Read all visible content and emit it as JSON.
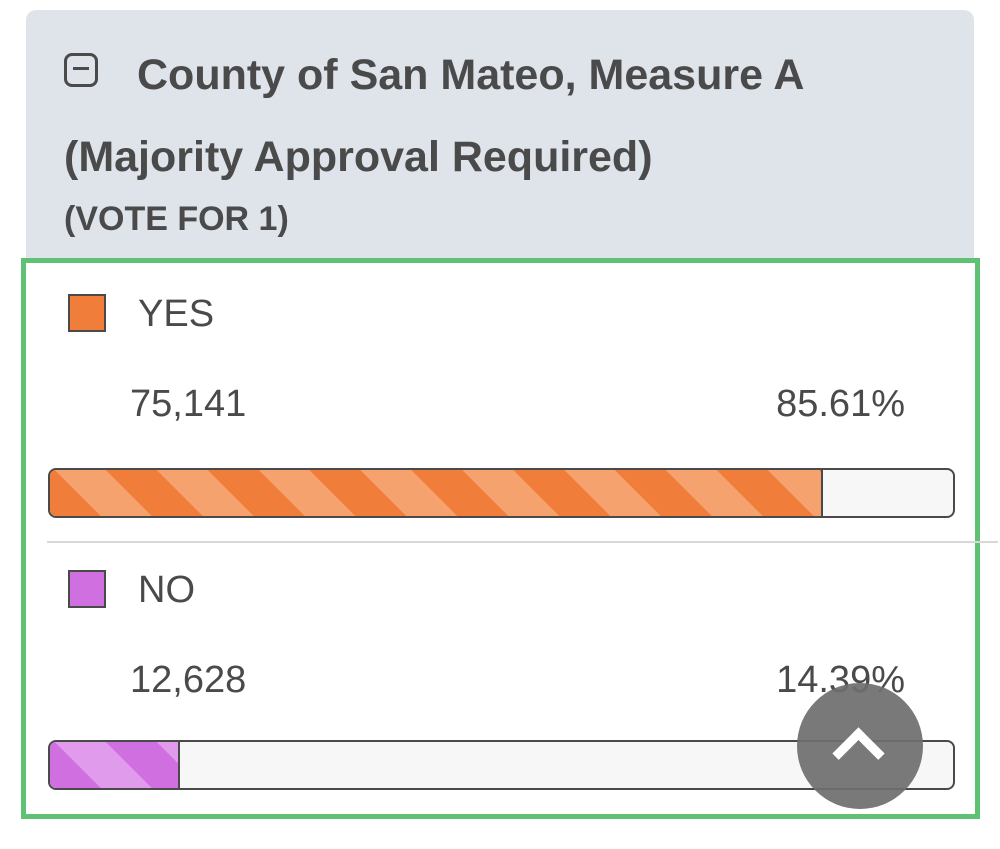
{
  "contest": {
    "title": "County of San Mateo, Measure A (Majority Approval Required)",
    "vote_for": "(VOTE FOR 1)"
  },
  "choices": [
    {
      "label": "YES",
      "votes": "75,141",
      "percent_text": "85.61%",
      "percent": 85.61,
      "color": "#f07d3a",
      "stripe": "#f5a26f"
    },
    {
      "label": "NO",
      "votes": "12,628",
      "percent_text": "14.39%",
      "percent": 14.39,
      "color": "#d06fe0",
      "stripe": "#e09bec"
    }
  ],
  "colors": {
    "border": "#5ec173",
    "header_bg": "#dfe3ea"
  },
  "icons": {
    "collapse": "minus-square-icon",
    "scroll_top": "chevron-up-icon"
  }
}
